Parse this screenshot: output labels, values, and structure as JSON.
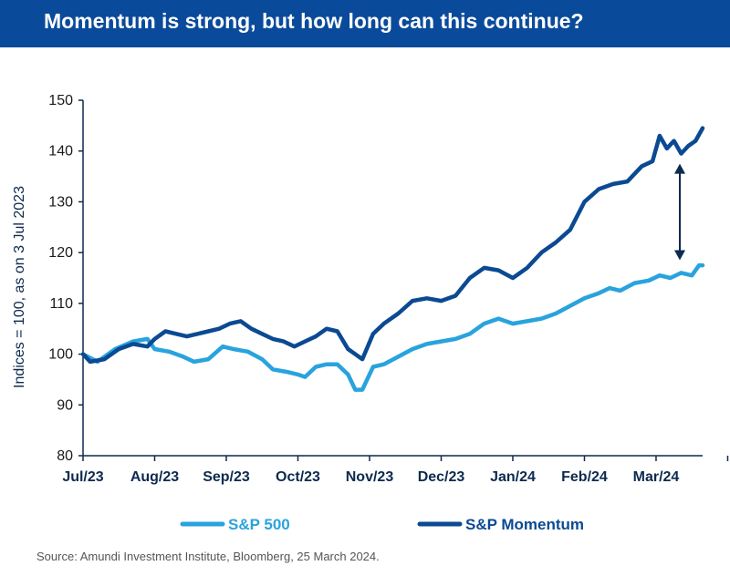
{
  "header": {
    "title": "Momentum is strong, but how long can this continue?"
  },
  "colors": {
    "banner": "#0a4a9a",
    "sp500": "#29a3dd",
    "momentum": "#0b4a92",
    "axis": "#0d2a4f",
    "arrow": "#0d2a4f"
  },
  "chart_data": {
    "type": "line",
    "title": "Momentum is strong, but how long can this continue?",
    "xlabel": "",
    "ylabel": "Indices = 100, as on 3 Jul 2023",
    "ylim": [
      80,
      150
    ],
    "yticks": [
      80,
      90,
      100,
      110,
      120,
      130,
      140,
      150
    ],
    "xlim": [
      0,
      8.65
    ],
    "xtick_labels": [
      "Jul/23",
      "Aug/23",
      "Sep/23",
      "Oct/23",
      "Nov/23",
      "Dec/23",
      "Jan/24",
      "Feb/24",
      "Mar/24"
    ],
    "legend": "bottom",
    "annotation": "double-headed arrow near Mar/24 marking the gap between the two series",
    "series": [
      {
        "name": "S&P 500",
        "color": "#29a3dd",
        "x": [
          0,
          0.2,
          0.45,
          0.7,
          0.9,
          1.0,
          1.2,
          1.4,
          1.55,
          1.75,
          1.95,
          2.1,
          2.3,
          2.5,
          2.65,
          2.85,
          3.0,
          3.1,
          3.25,
          3.4,
          3.55,
          3.7,
          3.8,
          3.9,
          4.05,
          4.2,
          4.4,
          4.6,
          4.8,
          5.0,
          5.2,
          5.4,
          5.6,
          5.8,
          6.0,
          6.2,
          6.4,
          6.6,
          6.8,
          7.0,
          7.2,
          7.35,
          7.5,
          7.7,
          7.9,
          8.05,
          8.2,
          8.35,
          8.5,
          8.6,
          8.65
        ],
        "values": [
          100,
          98.5,
          101,
          102.5,
          103,
          101,
          100.5,
          99.5,
          98.5,
          99,
          101.5,
          101,
          100.5,
          99,
          97,
          96.5,
          96,
          95.5,
          97.5,
          98,
          98,
          96,
          93,
          93,
          97.5,
          98,
          99.5,
          101,
          102,
          102.5,
          103,
          104,
          106,
          107,
          106,
          106.5,
          107,
          108,
          109.5,
          111,
          112,
          113,
          112.5,
          114,
          114.5,
          115.5,
          115,
          116,
          115.5,
          117.5,
          117.5
        ]
      },
      {
        "name": "S&P Momentum",
        "color": "#0b4a92",
        "x": [
          0,
          0.1,
          0.3,
          0.5,
          0.7,
          0.9,
          1.0,
          1.15,
          1.3,
          1.45,
          1.6,
          1.75,
          1.9,
          2.05,
          2.2,
          2.35,
          2.5,
          2.65,
          2.8,
          2.95,
          3.1,
          3.25,
          3.4,
          3.55,
          3.7,
          3.8,
          3.9,
          4.05,
          4.2,
          4.4,
          4.6,
          4.8,
          5.0,
          5.2,
          5.4,
          5.6,
          5.8,
          6.0,
          6.2,
          6.4,
          6.6,
          6.8,
          7.0,
          7.2,
          7.4,
          7.6,
          7.8,
          7.95,
          8.05,
          8.15,
          8.25,
          8.35,
          8.45,
          8.55,
          8.65
        ],
        "values": [
          100,
          98.5,
          99,
          101,
          102,
          101.5,
          103,
          104.5,
          104,
          103.5,
          104,
          104.5,
          105,
          106,
          106.5,
          105,
          104,
          103,
          102.5,
          101.5,
          102.5,
          103.5,
          105,
          104.5,
          101,
          100,
          99,
          104,
          106,
          108,
          110.5,
          111,
          110.5,
          111.5,
          115,
          117,
          116.5,
          115,
          117,
          120,
          122,
          124.5,
          130,
          132.5,
          133.5,
          134,
          137,
          138,
          143,
          140.5,
          142,
          139.5,
          141,
          142,
          144.5
        ]
      }
    ]
  },
  "source": "Source: Amundi Investment Institute, Bloomberg, 25 March 2024."
}
